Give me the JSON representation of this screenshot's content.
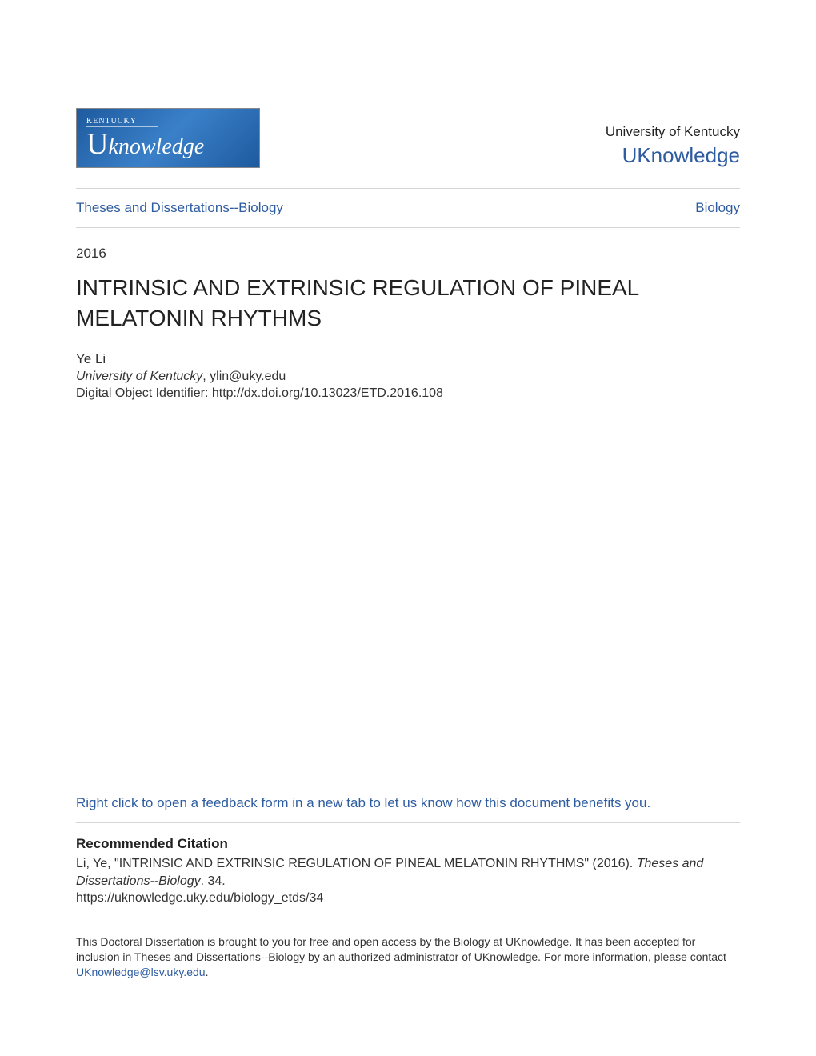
{
  "colors": {
    "link": "#2e5ca0",
    "text": "#333333",
    "heading": "#222222",
    "rule": "#d5d5d5",
    "background": "#ffffff",
    "logo_gradient_start": "#1e5a9e",
    "logo_gradient_mid": "#3a80c9"
  },
  "typography": {
    "body_family": "Segoe UI, Arial, Helvetica, sans-serif",
    "title_family": "Arial, Helvetica, sans-serif",
    "logo_family": "Georgia, Times New Roman, serif",
    "title_size_pt": 21,
    "body_size_pt": 12,
    "small_size_pt": 10.5
  },
  "logo": {
    "small_text": "KENTUCKY",
    "big_u": "U",
    "word": "knowledge"
  },
  "header": {
    "university": "University of Kentucky",
    "repository": "UKnowledge"
  },
  "breadcrumb": {
    "left": "Theses and Dissertations--Biology",
    "right": "Biology"
  },
  "year": "2016",
  "title": "INTRINSIC AND EXTRINSIC REGULATION OF PINEAL MELATONIN RHYTHMS",
  "author": {
    "name": "Ye Li",
    "affiliation": "University of Kentucky",
    "email": "ylin@uky.edu",
    "doi_label": "Digital Object Identifier: ",
    "doi": "http://dx.doi.org/10.13023/ETD.2016.108"
  },
  "feedback": "Right click to open a feedback form in a new tab to let us know how this document benefits you.",
  "citation": {
    "heading": "Recommended Citation",
    "line1a": "Li, Ye, \"INTRINSIC AND EXTRINSIC REGULATION OF PINEAL MELATONIN RHYTHMS\" (2016). ",
    "line1b_italic": "Theses and Dissertations--Biology",
    "line1c": ". 34.",
    "url": "https://uknowledge.uky.edu/biology_etds/34"
  },
  "footer": {
    "part1": "This Doctoral Dissertation is brought to you for free and open access by the Biology at UKnowledge. It has been accepted for inclusion in Theses and Dissertations--Biology by an authorized administrator of UKnowledge. For more information, please contact ",
    "contact_email": "UKnowledge@lsv.uky.edu",
    "part2": "."
  }
}
